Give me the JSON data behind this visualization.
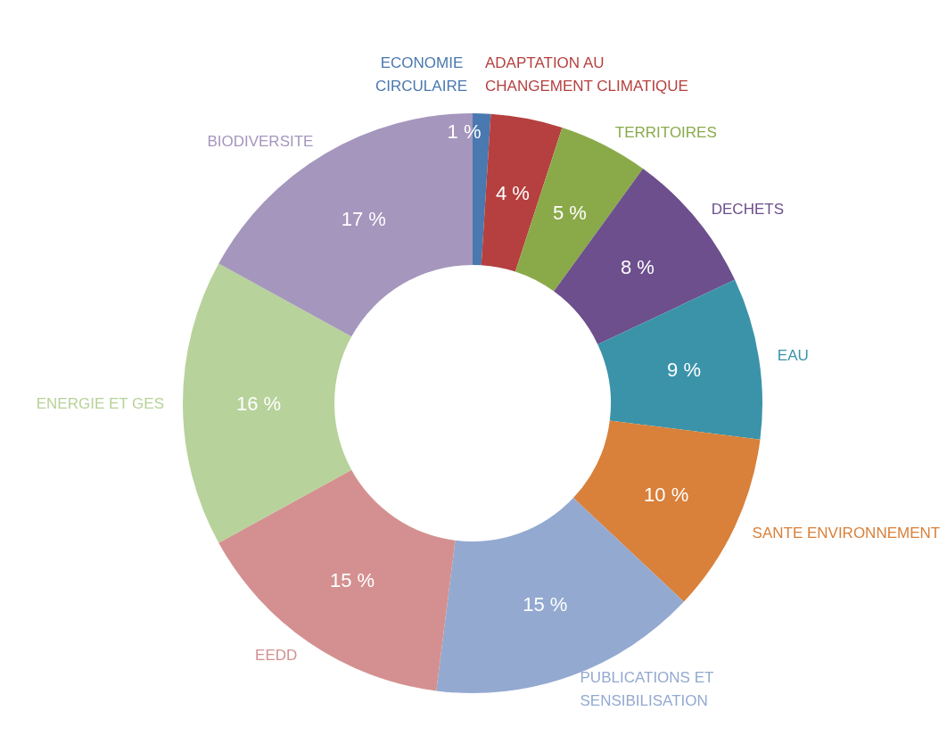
{
  "chart_data": {
    "type": "donut",
    "categories": [
      "ECONOMIE CIRCULAIRE",
      "ADAPTATION AU CHANGEMENT CLIMATIQUE",
      "TERRITOIRES",
      "DECHETS",
      "EAU",
      "SANTE ENVIRONNEMENT",
      "PUBLICATIONS ET SENSIBILISATION",
      "EEDD",
      "ENERGIE ET GES",
      "BIODIVERSITE"
    ],
    "values": [
      1,
      4,
      5,
      8,
      9,
      10,
      15,
      15,
      16,
      17
    ],
    "value_labels": [
      "1 %",
      "4 %",
      "5 %",
      "8 %",
      "9 %",
      "10 %",
      "15 %",
      "15 %",
      "16 %",
      "17 %"
    ],
    "colors": [
      "#4a78b0",
      "#b5403f",
      "#8aaa4a",
      "#6c4f8c",
      "#3b93aa",
      "#d9803a",
      "#93a9d0",
      "#d49090",
      "#b7d29a",
      "#a596bd"
    ],
    "legend": false
  }
}
